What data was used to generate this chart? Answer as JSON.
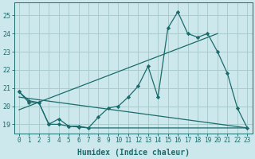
{
  "xlabel": "Humidex (Indice chaleur)",
  "background_color": "#cce8ec",
  "grid_color": "#aacccc",
  "line_color": "#1a6b6b",
  "xlim": [
    -0.5,
    23.5
  ],
  "ylim": [
    18.5,
    25.7
  ],
  "yticks": [
    19,
    20,
    21,
    22,
    23,
    24,
    25
  ],
  "xticks": [
    0,
    1,
    2,
    3,
    4,
    5,
    6,
    7,
    8,
    9,
    10,
    11,
    12,
    13,
    14,
    15,
    16,
    17,
    18,
    19,
    20,
    21,
    22,
    23
  ],
  "main_x": [
    0,
    1,
    2,
    3,
    4,
    5,
    6,
    7,
    8,
    9,
    10,
    11,
    12,
    13,
    14,
    15,
    16,
    17,
    18,
    19,
    20,
    21,
    22,
    23
  ],
  "main_y": [
    20.8,
    20.3,
    20.2,
    19.0,
    19.3,
    18.9,
    18.9,
    18.8,
    19.4,
    19.9,
    20.0,
    20.5,
    21.1,
    22.2,
    20.5,
    24.3,
    25.2,
    24.0,
    23.8,
    24.0,
    23.0,
    21.8,
    19.9,
    18.8
  ],
  "flat_x": [
    0,
    1,
    2,
    3,
    4,
    5,
    6,
    7,
    8,
    9,
    10,
    11,
    12,
    13,
    14,
    15,
    16,
    17,
    18,
    19,
    20,
    21,
    22,
    23
  ],
  "flat_y": [
    20.8,
    20.2,
    20.2,
    19.0,
    19.0,
    18.9,
    18.85,
    18.8,
    18.8,
    18.8,
    18.8,
    18.8,
    18.8,
    18.8,
    18.8,
    18.8,
    18.8,
    18.8,
    18.8,
    18.8,
    18.8,
    18.8,
    18.8,
    18.8
  ],
  "trend1_x": [
    0,
    20
  ],
  "trend1_y": [
    19.8,
    24.0
  ],
  "trend2_x": [
    0,
    23
  ],
  "trend2_y": [
    20.5,
    18.8
  ],
  "xlabel_fontsize": 7,
  "tick_fontsize": 5.5
}
